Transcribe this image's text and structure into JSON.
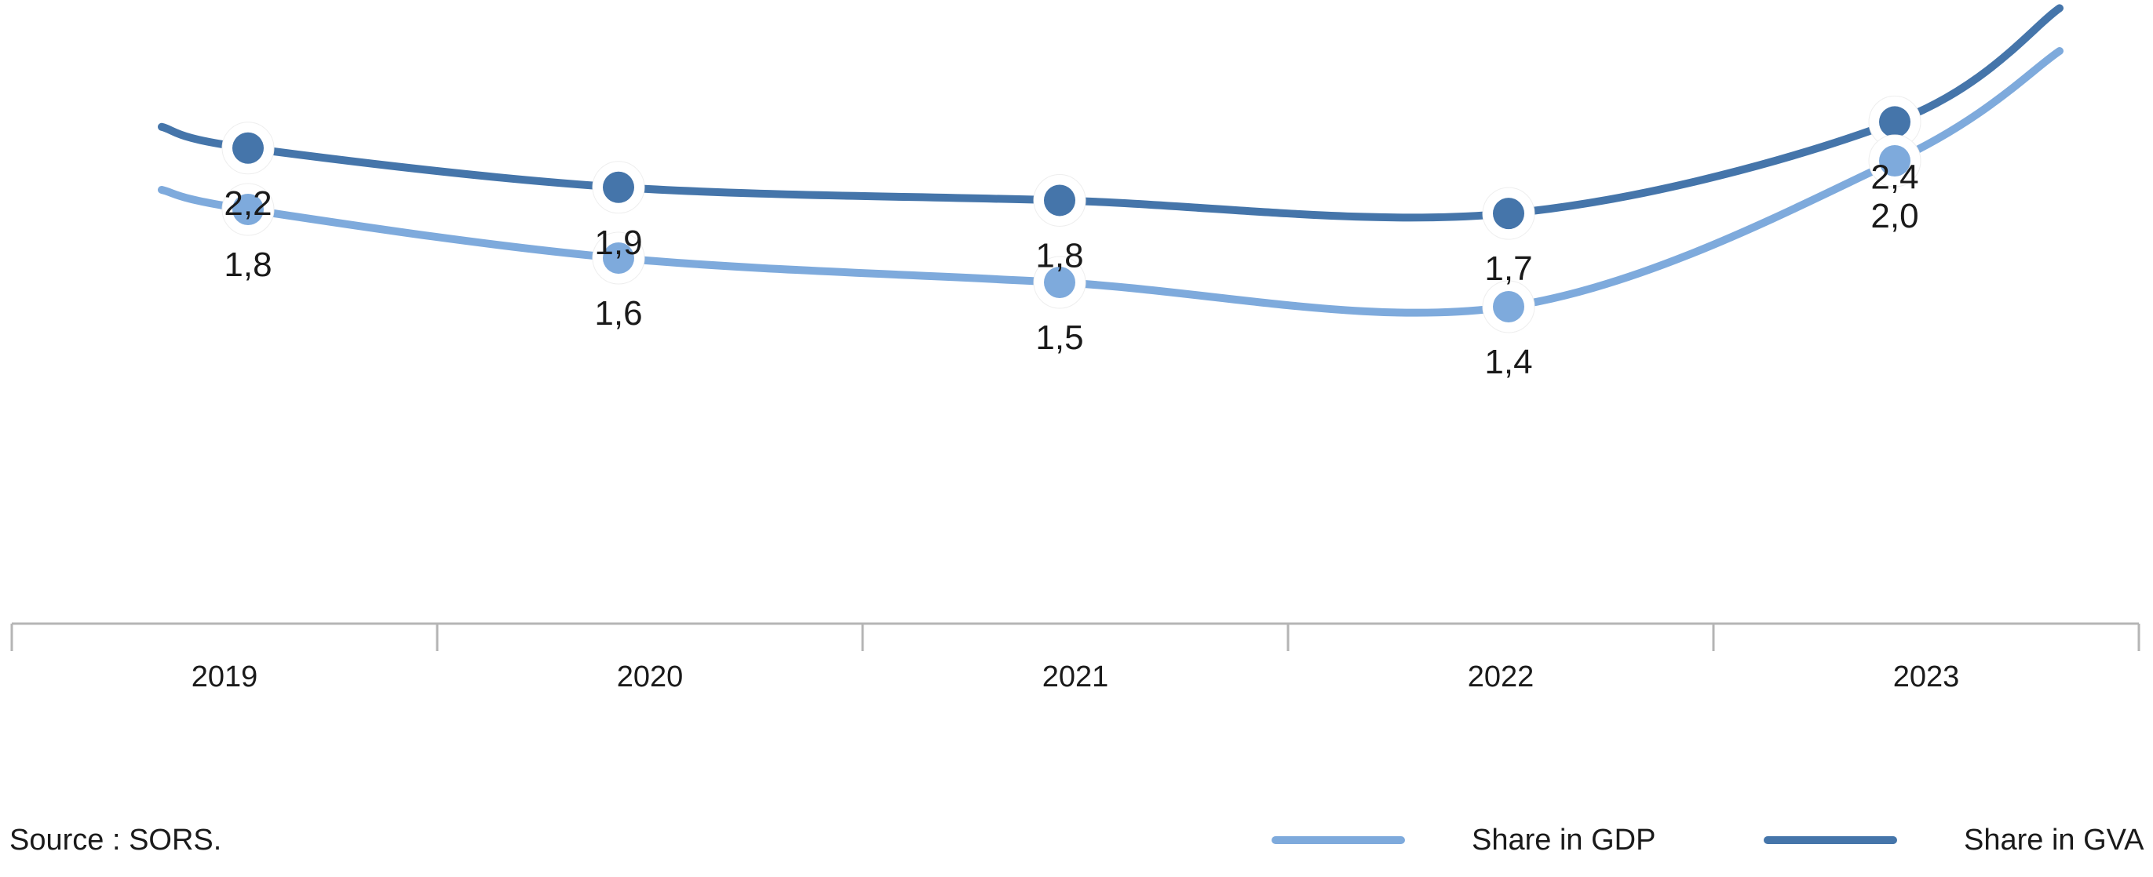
{
  "chart_data": {
    "type": "line",
    "categories": [
      "2019",
      "2020",
      "2021",
      "2022",
      "2023"
    ],
    "series": [
      {
        "name": "Share in GVA",
        "values": [
          2.2,
          1.9,
          1.8,
          1.7,
          2.4
        ],
        "labels": [
          "2,2",
          "1,9",
          "1,8",
          "1,7",
          "2,4"
        ],
        "color": "#4575aa"
      },
      {
        "name": "Share in GDP",
        "values": [
          1.8,
          1.6,
          1.5,
          1.4,
          2.0
        ],
        "labels": [
          "1,8",
          "1,6",
          "1,5",
          "1,4",
          "2,0"
        ],
        "color": "#7eaadc"
      }
    ],
    "grid": false,
    "legend_position": "bottom-right",
    "axis_color": "#b5b5b5"
  },
  "source_text": "Source : SORS."
}
